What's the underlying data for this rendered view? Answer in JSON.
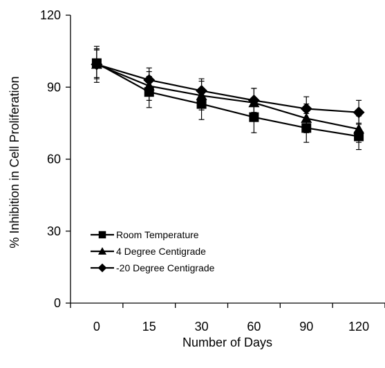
{
  "chart_data": {
    "type": "line",
    "title": "",
    "xlabel": "Number of Days",
    "ylabel": "% Inhibition in Cell Proliferation",
    "categories": [
      "0",
      "15",
      "30",
      "60",
      "90",
      "120"
    ],
    "ylim": [
      0,
      120
    ],
    "yticks": [
      "0",
      "30",
      "60",
      "90",
      "120"
    ],
    "grid": false,
    "legend_position": "lower-left",
    "series": [
      {
        "name": "Room Temperature",
        "marker": "square",
        "color": "#000000",
        "values": [
          100,
          88,
          83,
          77.5,
          73,
          69.5
        ],
        "errors": [
          6,
          6.5,
          6.5,
          6.5,
          6,
          5.5
        ]
      },
      {
        "name": "4 Degree Centigrade",
        "marker": "triangle",
        "color": "#000000",
        "values": [
          99.5,
          90.5,
          86.5,
          83.5,
          77,
          72.5
        ],
        "errors": [
          7.5,
          6,
          6,
          6,
          6,
          5.5
        ]
      },
      {
        "name": "-20 Degree Centigrade",
        "marker": "diamond",
        "color": "#000000",
        "values": [
          99.5,
          93,
          88.5,
          84.5,
          81,
          79.5
        ],
        "errors": [
          6,
          5,
          5,
          5,
          5,
          5
        ]
      }
    ]
  }
}
